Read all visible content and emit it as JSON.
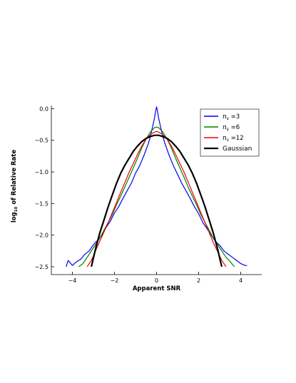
{
  "chart_data": {
    "type": "line",
    "title": "",
    "xlabel": "Apparent SNR",
    "ylabel_main": "of Relative Rate",
    "ylabel_prefix": "log",
    "ylabel_subscript": "10",
    "xlim": [
      -5,
      5
    ],
    "ylim": [
      -2.5,
      0.05
    ],
    "xticks": [
      -4,
      -2,
      0,
      2,
      4
    ],
    "xtick_labels": [
      "−4",
      "−2",
      "0",
      "2",
      "4"
    ],
    "yticks": [
      0.0,
      -0.5,
      -1.0,
      -1.5,
      -2.0,
      -2.5
    ],
    "ytick_labels": [
      "0.0",
      "−0.5",
      "−1.0",
      "−1.5",
      "−2.0",
      "−2.5"
    ],
    "legend_position": "top-right",
    "grid": false,
    "series": [
      {
        "name": "n_s =3",
        "legend_symbol": "n",
        "legend_subscript": "s",
        "legend_suffix": "=3",
        "color": "#0000ee",
        "x": [
          -4.3,
          -4.2,
          -4.0,
          -3.8,
          -3.6,
          -3.4,
          -3.2,
          -3.0,
          -2.8,
          -2.6,
          -2.4,
          -2.2,
          -2.0,
          -1.8,
          -1.6,
          -1.4,
          -1.2,
          -1.0,
          -0.8,
          -0.6,
          -0.4,
          -0.3,
          -0.2,
          -0.1,
          -0.05,
          0.0,
          0.05,
          0.1,
          0.2,
          0.3,
          0.4,
          0.6,
          0.8,
          1.0,
          1.2,
          1.4,
          1.6,
          1.8,
          2.0,
          2.2,
          2.4,
          2.6,
          2.8,
          3.0,
          3.2,
          3.4,
          3.6,
          3.8,
          4.0,
          4.2,
          4.3
        ],
        "y": [
          -2.5,
          -2.4,
          -2.48,
          -2.42,
          -2.38,
          -2.3,
          -2.25,
          -2.15,
          -2.08,
          -2.0,
          -1.88,
          -1.78,
          -1.65,
          -1.55,
          -1.42,
          -1.3,
          -1.18,
          -1.02,
          -0.9,
          -0.74,
          -0.56,
          -0.45,
          -0.3,
          -0.15,
          -0.05,
          0.03,
          -0.05,
          -0.15,
          -0.3,
          -0.44,
          -0.55,
          -0.74,
          -0.9,
          -1.04,
          -1.18,
          -1.3,
          -1.42,
          -1.55,
          -1.66,
          -1.8,
          -1.9,
          -2.0,
          -2.1,
          -2.16,
          -2.25,
          -2.3,
          -2.35,
          -2.4,
          -2.45,
          -2.48,
          -2.48
        ]
      },
      {
        "name": "n_s =6",
        "legend_symbol": "n",
        "legend_subscript": "s",
        "legend_suffix": "=6",
        "color": "#008000",
        "x": [
          -3.7,
          -3.5,
          -3.3,
          -3.1,
          -2.9,
          -2.7,
          -2.5,
          -2.3,
          -2.1,
          -1.9,
          -1.7,
          -1.5,
          -1.3,
          -1.1,
          -0.9,
          -0.7,
          -0.5,
          -0.3,
          -0.1,
          0.0,
          0.1,
          0.3,
          0.5,
          0.7,
          0.9,
          1.1,
          1.3,
          1.5,
          1.7,
          1.9,
          2.1,
          2.3,
          2.5,
          2.7,
          2.9,
          3.1,
          3.3,
          3.5,
          3.7
        ],
        "y": [
          -2.5,
          -2.45,
          -2.35,
          -2.25,
          -2.15,
          -2.05,
          -1.92,
          -1.8,
          -1.67,
          -1.52,
          -1.38,
          -1.23,
          -1.08,
          -0.93,
          -0.78,
          -0.62,
          -0.48,
          -0.37,
          -0.3,
          -0.29,
          -0.3,
          -0.37,
          -0.48,
          -0.62,
          -0.78,
          -0.93,
          -1.08,
          -1.24,
          -1.38,
          -1.52,
          -1.67,
          -1.8,
          -1.92,
          -2.05,
          -2.15,
          -2.25,
          -2.35,
          -2.42,
          -2.5
        ]
      },
      {
        "name": "n_s =12",
        "legend_symbol": "n",
        "legend_subscript": "s",
        "legend_suffix": "=12",
        "color": "#ee0000",
        "x": [
          -3.3,
          -3.1,
          -2.9,
          -2.7,
          -2.5,
          -2.3,
          -2.1,
          -1.9,
          -1.7,
          -1.5,
          -1.3,
          -1.1,
          -0.9,
          -0.7,
          -0.5,
          -0.3,
          -0.1,
          0.0,
          0.1,
          0.3,
          0.5,
          0.7,
          0.9,
          1.1,
          1.3,
          1.5,
          1.7,
          1.9,
          2.1,
          2.3,
          2.5,
          2.7,
          2.9,
          3.1,
          3.3
        ],
        "y": [
          -2.5,
          -2.4,
          -2.25,
          -2.1,
          -1.95,
          -1.8,
          -1.64,
          -1.48,
          -1.32,
          -1.16,
          -1.0,
          -0.86,
          -0.72,
          -0.59,
          -0.48,
          -0.41,
          -0.37,
          -0.36,
          -0.37,
          -0.41,
          -0.48,
          -0.59,
          -0.72,
          -0.86,
          -1.0,
          -1.16,
          -1.32,
          -1.48,
          -1.64,
          -1.8,
          -1.96,
          -2.12,
          -2.26,
          -2.4,
          -2.5
        ]
      },
      {
        "name": "Gaussian",
        "color": "#000000",
        "x": [
          -3.1,
          -2.9,
          -2.7,
          -2.5,
          -2.3,
          -2.1,
          -1.9,
          -1.7,
          -1.5,
          -1.3,
          -1.1,
          -0.9,
          -0.7,
          -0.5,
          -0.3,
          -0.1,
          0.0,
          0.1,
          0.3,
          0.5,
          0.7,
          0.9,
          1.1,
          1.3,
          1.5,
          1.7,
          1.9,
          2.1,
          2.3,
          2.5,
          2.7,
          2.9,
          3.1
        ],
        "y": [
          -2.5,
          -2.22,
          -1.97,
          -1.76,
          -1.55,
          -1.36,
          -1.18,
          -1.02,
          -0.89,
          -0.78,
          -0.67,
          -0.59,
          -0.52,
          -0.47,
          -0.44,
          -0.42,
          -0.42,
          -0.42,
          -0.44,
          -0.47,
          -0.52,
          -0.59,
          -0.67,
          -0.78,
          -0.89,
          -1.02,
          -1.18,
          -1.36,
          -1.55,
          -1.76,
          -1.97,
          -2.22,
          -2.5
        ]
      }
    ]
  }
}
